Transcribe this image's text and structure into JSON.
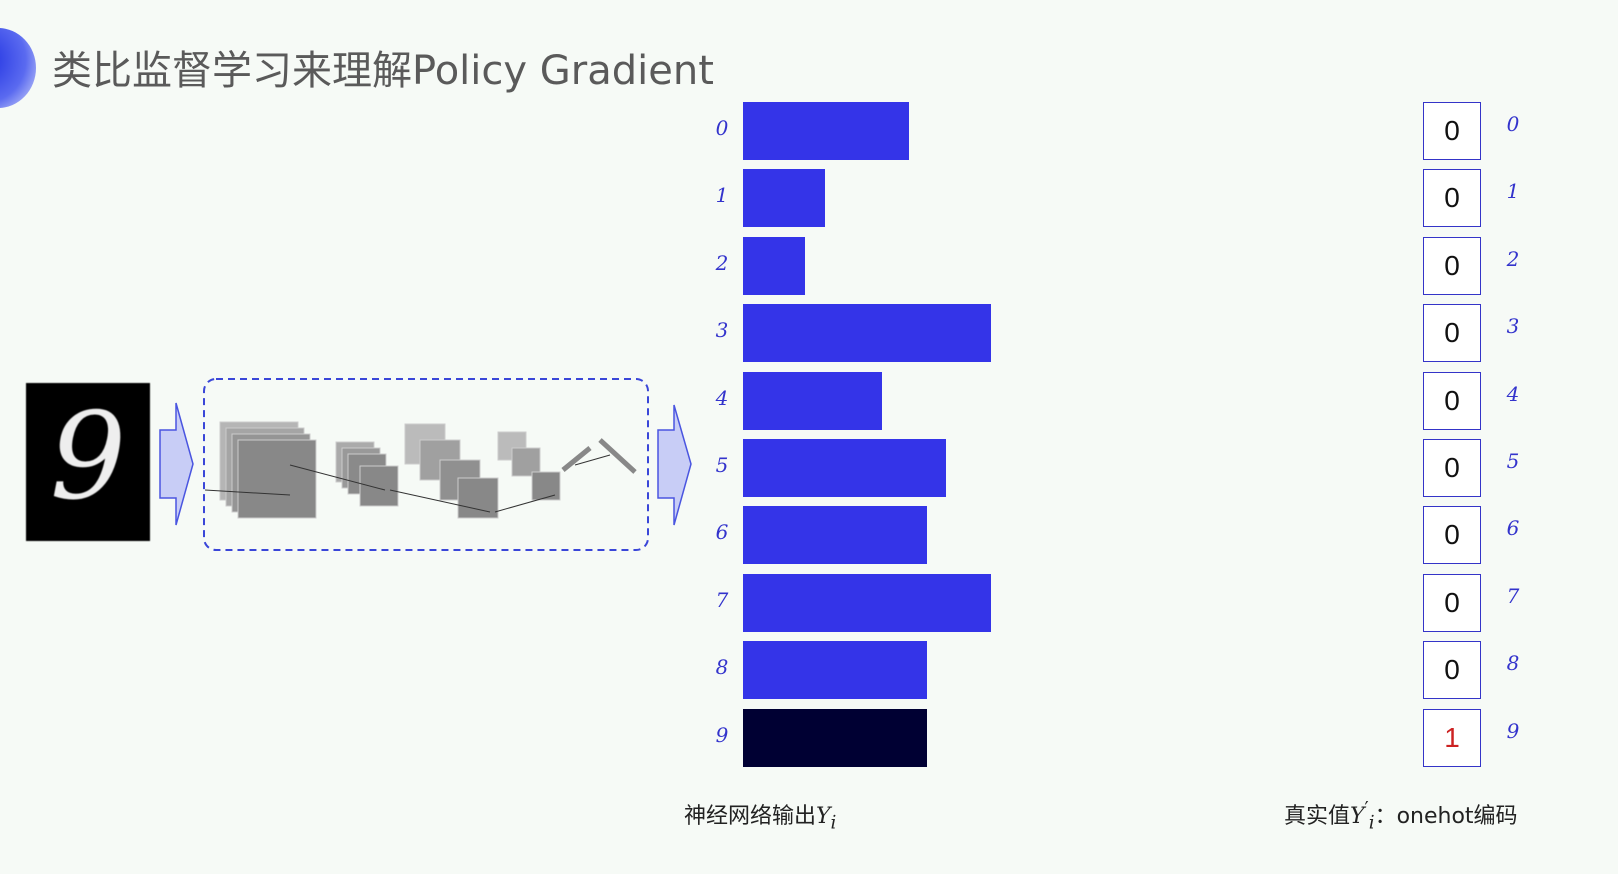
{
  "slide": {
    "title": "类比监督学习来理解Policy Gradient",
    "input_digit": "9",
    "accent_color": "#3434e8",
    "highlight_color": "#000033",
    "one_hot_highlight_color": "#cc2222"
  },
  "chart_data": {
    "type": "bar",
    "orientation": "horizontal",
    "categories": [
      "0",
      "1",
      "2",
      "3",
      "4",
      "5",
      "6",
      "7",
      "8",
      "9"
    ],
    "values": [
      0.67,
      0.33,
      0.25,
      1.0,
      0.56,
      0.82,
      0.74,
      1.0,
      0.74,
      0.74
    ],
    "highlighted_category": "9",
    "caption": "神经网络输出",
    "caption_symbol": "Y",
    "caption_subscript": "i"
  },
  "one_hot": {
    "values": [
      "0",
      "0",
      "0",
      "0",
      "0",
      "0",
      "0",
      "0",
      "0",
      "1"
    ],
    "labels": [
      "0",
      "1",
      "2",
      "3",
      "4",
      "5",
      "6",
      "7",
      "8",
      "9"
    ],
    "caption_prefix": "真实值",
    "caption_symbol": "Y",
    "caption_prime": "′",
    "caption_subscript": "i",
    "caption_suffix": "：onehot编码"
  }
}
